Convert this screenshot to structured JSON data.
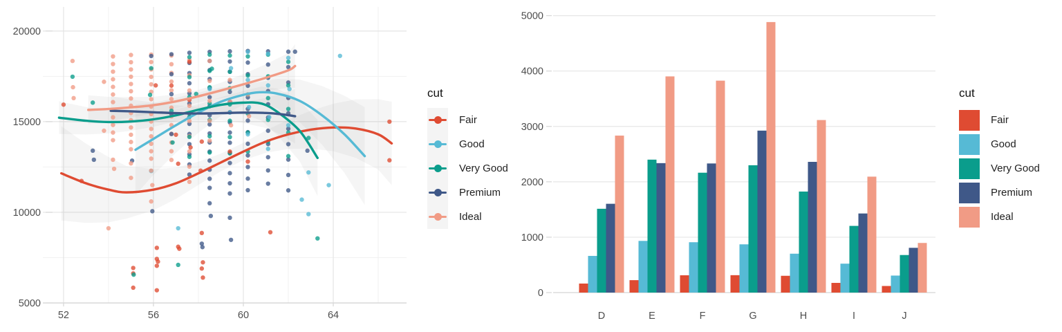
{
  "legend": {
    "title": "cut",
    "items": [
      "Fair",
      "Good",
      "Very Good",
      "Premium",
      "Ideal"
    ]
  },
  "palette": {
    "Fair": "#df4b32",
    "Good": "#56bad5",
    "Very Good": "#0a9d8c",
    "Premium": "#3f5888",
    "Ideal": "#f19b85"
  },
  "theme": {
    "background": "#ffffff",
    "grid_major": "#e4e4e4",
    "grid_minor": "#f1f1f1",
    "axis_line": "#d4d4d4",
    "tick_mark": "#d9d9d9",
    "tick_label": "#4d4d4d",
    "legend_text": "#1f1f1f",
    "ribbon": "#9a9a9a"
  },
  "chart_data": [
    {
      "type": "scatter",
      "title": "",
      "xlabel": "",
      "ylabel": "",
      "legend_title": "cut",
      "legend_position": "right",
      "grid": true,
      "xlim": [
        51.08,
        67.26
      ],
      "ylim": [
        5000,
        21330
      ],
      "x_ticks": [
        52,
        56,
        60,
        64
      ],
      "x_minor": [
        54,
        58,
        62,
        66
      ],
      "y_ticks": [
        5000,
        10000,
        15000,
        20000
      ],
      "y_minor": [
        7500,
        12500,
        17500
      ],
      "series_names": [
        "Fair",
        "Good",
        "Very Good",
        "Premium",
        "Ideal"
      ],
      "smooth_lines": [
        {
          "name": "Fair",
          "path": [
            [
              51.9,
              12150
            ],
            [
              53,
              11600
            ],
            [
              54,
              11250
            ],
            [
              54.8,
              11100
            ],
            [
              56,
              11250
            ],
            [
              57,
              11600
            ],
            [
              58,
              12150
            ],
            [
              59,
              12750
            ],
            [
              60,
              13350
            ],
            [
              61,
              13900
            ],
            [
              62,
              14300
            ],
            [
              63,
              14560
            ],
            [
              64,
              14680
            ],
            [
              65,
              14620
            ],
            [
              66,
              14300
            ],
            [
              66.6,
              13800
            ]
          ]
        },
        {
          "name": "Good",
          "path": [
            [
              55.2,
              13450
            ],
            [
              56,
              14050
            ],
            [
              57,
              14800
            ],
            [
              58,
              15500
            ],
            [
              59,
              16100
            ],
            [
              60,
              16480
            ],
            [
              60.7,
              16620
            ],
            [
              61.5,
              16550
            ],
            [
              62.5,
              16150
            ],
            [
              63.5,
              15350
            ],
            [
              64.5,
              14300
            ],
            [
              65.4,
              13100
            ]
          ]
        },
        {
          "name": "Very Good",
          "path": [
            [
              51.8,
              15220
            ],
            [
              53,
              15050
            ],
            [
              54,
              14980
            ],
            [
              55,
              15010
            ],
            [
              56,
              15130
            ],
            [
              57,
              15350
            ],
            [
              58,
              15660
            ],
            [
              59,
              15930
            ],
            [
              60,
              16050
            ],
            [
              60.8,
              16000
            ],
            [
              61.5,
              15550
            ],
            [
              62.5,
              14500
            ],
            [
              63.3,
              13000
            ]
          ]
        },
        {
          "name": "Premium",
          "path": [
            [
              54.1,
              15600
            ],
            [
              55,
              15570
            ],
            [
              56,
              15520
            ],
            [
              57,
              15470
            ],
            [
              58,
              15450
            ],
            [
              59,
              15470
            ],
            [
              60,
              15500
            ],
            [
              61,
              15480
            ],
            [
              61.7,
              15410
            ],
            [
              62.3,
              15300
            ]
          ]
        },
        {
          "name": "Ideal",
          "path": [
            [
              53.1,
              15650
            ],
            [
              54,
              15700
            ],
            [
              55,
              15790
            ],
            [
              56,
              15910
            ],
            [
              57,
              16120
            ],
            [
              58,
              16400
            ],
            [
              59,
              16720
            ],
            [
              60,
              17060
            ],
            [
              61,
              17420
            ],
            [
              62,
              17830
            ],
            [
              62.3,
              18070
            ]
          ]
        }
      ],
      "ribbons": [
        {
          "name": "Fair",
          "width_start": 2600,
          "width_mid": 450,
          "width_end": 2300
        },
        {
          "name": "Good",
          "width_start": 2500,
          "width_mid": 500,
          "width_end": 2700
        },
        {
          "name": "Very Good",
          "width_start": 900,
          "width_mid": 300,
          "width_end": 2100
        },
        {
          "name": "Premium",
          "width_start": 800,
          "width_mid": 350,
          "width_end": 1500
        },
        {
          "name": "Ideal",
          "width_start": 800,
          "width_mid": 350,
          "width_end": 1200
        }
      ],
      "point_runs": [
        [
          54.2,
          4,
          18600,
          420,
          12
        ],
        [
          55.0,
          4,
          18680,
          400,
          14
        ],
        [
          55.9,
          4,
          18700,
          410,
          15
        ],
        [
          56.8,
          4,
          18650,
          480,
          13
        ],
        [
          56.8,
          3,
          18720,
          1100,
          5
        ],
        [
          57.6,
          3,
          18800,
          560,
          13
        ],
        [
          57.6,
          4,
          18400,
          840,
          9
        ],
        [
          57.6,
          2,
          18560,
          1100,
          6
        ],
        [
          58.5,
          3,
          18850,
          500,
          16
        ],
        [
          58.5,
          2,
          18700,
          900,
          7
        ],
        [
          58.5,
          4,
          18350,
          1100,
          5
        ],
        [
          59.4,
          3,
          18880,
          560,
          15
        ],
        [
          59.4,
          2,
          18650,
          900,
          7
        ],
        [
          60.2,
          3,
          18900,
          640,
          13
        ],
        [
          60.2,
          2,
          18600,
          1050,
          6
        ],
        [
          61.1,
          3,
          18880,
          730,
          11
        ],
        [
          61.1,
          2,
          18700,
          1200,
          5
        ],
        [
          62.0,
          3,
          18860,
          850,
          10
        ],
        [
          62.0,
          2,
          18300,
          1300,
          5
        ]
      ],
      "points": [
        [
          52.0,
          15940,
          0
        ],
        [
          52.8,
          11730,
          0
        ],
        [
          55.1,
          6930,
          0
        ],
        [
          55.1,
          6630,
          0
        ],
        [
          55.1,
          5840,
          0
        ],
        [
          56.1,
          17000,
          0
        ],
        [
          56.15,
          8040,
          0
        ],
        [
          56.15,
          7430,
          0
        ],
        [
          56.2,
          7280,
          0
        ],
        [
          56.15,
          7050,
          0
        ],
        [
          56.15,
          5700,
          0
        ],
        [
          56.8,
          16990,
          0
        ],
        [
          57.0,
          14280,
          0
        ],
        [
          57.1,
          12680,
          0
        ],
        [
          57.1,
          8100,
          0
        ],
        [
          57.15,
          7990,
          0
        ],
        [
          57.6,
          18300,
          0
        ],
        [
          57.6,
          16200,
          0
        ],
        [
          57.65,
          13580,
          0
        ],
        [
          58.1,
          12300,
          0
        ],
        [
          58.15,
          13900,
          0
        ],
        [
          58.15,
          8860,
          0
        ],
        [
          58.2,
          7240,
          0
        ],
        [
          58.15,
          6900,
          0
        ],
        [
          58.2,
          6400,
          0
        ],
        [
          59.4,
          13350,
          0
        ],
        [
          60.2,
          12800,
          0
        ],
        [
          61.2,
          8900,
          0
        ],
        [
          66.5,
          15000,
          0
        ],
        [
          66.5,
          12870,
          0
        ],
        [
          55.9,
          12280,
          1
        ],
        [
          57.1,
          9120,
          1
        ],
        [
          58.5,
          16800,
          1
        ],
        [
          59.45,
          17950,
          1
        ],
        [
          59.4,
          15500,
          1
        ],
        [
          60.2,
          18850,
          1
        ],
        [
          60.2,
          17300,
          1
        ],
        [
          60.25,
          15800,
          1
        ],
        [
          60.2,
          14300,
          1
        ],
        [
          61.1,
          18750,
          1
        ],
        [
          61.1,
          17000,
          1
        ],
        [
          61.15,
          15250,
          1
        ],
        [
          61.1,
          13500,
          1
        ],
        [
          62.0,
          18520,
          1
        ],
        [
          62.05,
          16800,
          1
        ],
        [
          62.0,
          14800,
          1
        ],
        [
          62.9,
          12200,
          1
        ],
        [
          62.9,
          9900,
          1
        ],
        [
          62.6,
          10700,
          1
        ],
        [
          63.8,
          11500,
          1
        ],
        [
          64.3,
          18630,
          1
        ],
        [
          52.4,
          17480,
          2
        ],
        [
          53.3,
          16050,
          2
        ],
        [
          55.12,
          6560,
          2
        ],
        [
          55.9,
          17950,
          2
        ],
        [
          55.85,
          16480,
          2
        ],
        [
          56.8,
          15600,
          2
        ],
        [
          56.85,
          13850,
          2
        ],
        [
          57.1,
          7100,
          2
        ],
        [
          57.9,
          16530,
          2
        ],
        [
          58.6,
          17920,
          2
        ],
        [
          62.9,
          14100,
          2
        ],
        [
          63.3,
          8560,
          2
        ],
        [
          53.3,
          13400,
          3
        ],
        [
          53.35,
          12900,
          3
        ],
        [
          55.05,
          12850,
          3
        ],
        [
          55.9,
          18620,
          3
        ],
        [
          55.95,
          10060,
          3
        ],
        [
          58.15,
          8270,
          3
        ],
        [
          58.18,
          8080,
          3
        ],
        [
          58.5,
          10500,
          3
        ],
        [
          58.55,
          9800,
          3
        ],
        [
          59.4,
          9700,
          3
        ],
        [
          59.45,
          8480,
          3
        ],
        [
          62.3,
          18860,
          3
        ],
        [
          62.85,
          13400,
          3
        ],
        [
          52.4,
          18350,
          4
        ],
        [
          52.42,
          16900,
          4
        ],
        [
          52.45,
          16300,
          4
        ],
        [
          53.8,
          17200,
          4
        ],
        [
          53.8,
          14500,
          4
        ],
        [
          54.0,
          9120,
          4
        ],
        [
          54.2,
          12900,
          4
        ],
        [
          54.25,
          12400,
          4
        ],
        [
          55.0,
          12700,
          4
        ],
        [
          55.0,
          11900,
          4
        ],
        [
          55.9,
          12300,
          4
        ],
        [
          55.95,
          11500,
          4
        ],
        [
          55.9,
          10600,
          4
        ],
        [
          59.4,
          17300,
          4
        ],
        [
          59.42,
          16100,
          4
        ],
        [
          59.45,
          14800,
          4
        ],
        [
          60.2,
          16500,
          4
        ],
        [
          60.25,
          15300,
          4
        ]
      ]
    },
    {
      "type": "bar",
      "title": "",
      "xlabel": "",
      "ylabel": "",
      "legend_title": "cut",
      "legend_position": "right",
      "grid": true,
      "bar_mode": "dodge",
      "categories": [
        "D",
        "E",
        "F",
        "G",
        "H",
        "I",
        "J"
      ],
      "series": [
        {
          "name": "Fair",
          "values": [
            163,
            224,
            312,
            314,
            303,
            175,
            119
          ]
        },
        {
          "name": "Good",
          "values": [
            662,
            933,
            909,
            871,
            702,
            522,
            307
          ]
        },
        {
          "name": "Very Good",
          "values": [
            1513,
            2400,
            2164,
            2299,
            1824,
            1204,
            678
          ]
        },
        {
          "name": "Premium",
          "values": [
            1603,
            2337,
            2331,
            2924,
            2360,
            1428,
            808
          ]
        },
        {
          "name": "Ideal",
          "values": [
            2834,
            3903,
            3826,
            4884,
            3115,
            2093,
            896
          ]
        }
      ],
      "y_ticks": [
        0,
        1000,
        2000,
        3000,
        4000,
        5000
      ],
      "ylim": [
        0,
        5000
      ]
    }
  ]
}
